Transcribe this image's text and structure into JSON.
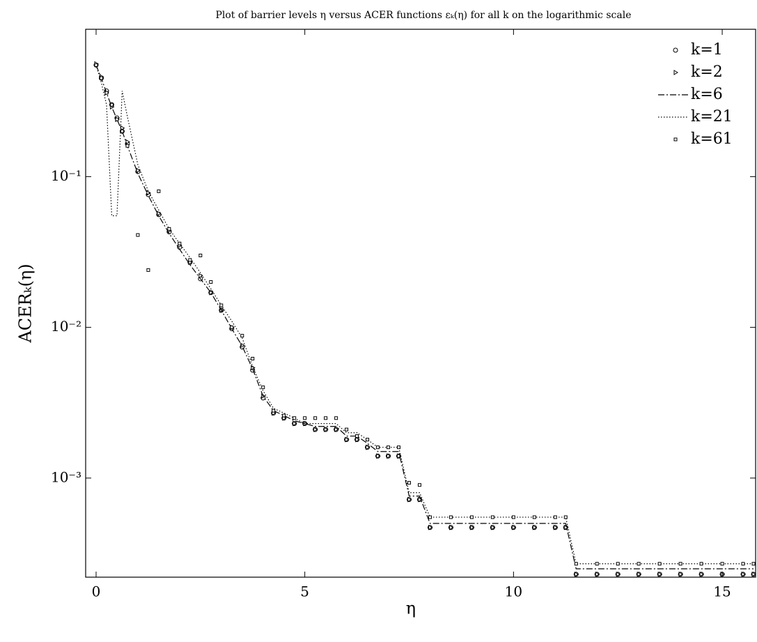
{
  "chart_data": {
    "type": "line",
    "title": "Plot of barrier levels η versus ACER functions εₖ(η) for all k on the logarithmic scale",
    "xlabel": "η",
    "ylabel": "ACERₖ(η)",
    "log_y": true,
    "legend": "top-right",
    "xlim": [
      -0.25,
      15.8
    ],
    "ylim": [
      0.00022,
      0.95
    ],
    "xticks": [
      0,
      5,
      10,
      15
    ],
    "yticks": [
      {
        "value": 0.1,
        "label": "10⁻¹"
      },
      {
        "value": 0.01,
        "label": "10⁻²"
      },
      {
        "value": 0.001,
        "label": "10⁻³"
      }
    ],
    "x": [
      0,
      0.125,
      0.25,
      0.375,
      0.5,
      0.625,
      0.75,
      1,
      1.25,
      1.5,
      1.75,
      2,
      2.25,
      2.5,
      2.75,
      3,
      3.25,
      3.5,
      3.75,
      4,
      4.25,
      4.5,
      4.75,
      5,
      5.25,
      5.5,
      5.75,
      6,
      6.25,
      6.5,
      6.75,
      7,
      7.25,
      7.5,
      7.75,
      8,
      8.5,
      9,
      9.5,
      10,
      10.5,
      11,
      11.25,
      11.5,
      12,
      12.5,
      13,
      13.5,
      14,
      14.5,
      15,
      15.5,
      15.75
    ],
    "series": [
      {
        "name": "k=1",
        "color": "#000000",
        "marker": "circle",
        "dash": null,
        "values": [
          0.55,
          0.45,
          0.37,
          0.3,
          0.245,
          0.2,
          0.165,
          0.108,
          0.076,
          0.056,
          0.043,
          0.034,
          0.027,
          0.021,
          0.017,
          0.013,
          0.0098,
          0.0074,
          0.0052,
          0.0034,
          0.0027,
          0.0025,
          0.0023,
          0.0023,
          0.0021,
          0.0021,
          0.0021,
          0.0018,
          0.0018,
          0.0016,
          0.0014,
          0.0014,
          0.0014,
          0.00072,
          0.00072,
          0.00047,
          0.00047,
          0.00047,
          0.00047,
          0.00047,
          0.00047,
          0.00047,
          0.00047,
          0.00023,
          0.00023,
          0.00023,
          0.00023,
          0.00023,
          0.00023,
          0.00023,
          0.00023,
          0.00023,
          0.00023
        ]
      },
      {
        "name": "k=2",
        "color": "#000000",
        "marker": "triangle",
        "dash": null,
        "values": [
          0.56,
          0.46,
          0.36,
          0.29,
          0.24,
          0.21,
          0.17,
          0.11,
          0.078,
          0.057,
          0.044,
          0.035,
          0.027,
          0.022,
          0.017,
          0.013,
          0.01,
          0.0076,
          0.0054,
          0.0035,
          0.0027,
          0.0025,
          0.0023,
          0.0023,
          0.0021,
          0.0021,
          0.0021,
          0.0018,
          0.0018,
          0.0016,
          0.0014,
          0.0014,
          0.0014,
          0.00072,
          0.00072,
          0.00047,
          0.00047,
          0.00047,
          0.00047,
          0.00047,
          0.00047,
          0.00047,
          0.00047,
          0.00023,
          0.00023,
          0.00023,
          0.00023,
          0.00023,
          0.00023,
          0.00023,
          0.00023,
          0.00023,
          0.00023
        ]
      },
      {
        "name": "k=6",
        "color": "#000000",
        "marker": null,
        "dash": "dashdot",
        "values": [
          0.55,
          0.45,
          0.36,
          0.29,
          0.24,
          0.2,
          0.16,
          0.105,
          0.075,
          0.055,
          0.042,
          0.033,
          0.026,
          0.021,
          0.017,
          0.013,
          0.0098,
          0.0075,
          0.0053,
          0.0035,
          0.0028,
          0.0026,
          0.0024,
          0.0023,
          0.0022,
          0.0022,
          0.0022,
          0.0019,
          0.0019,
          0.0017,
          0.0015,
          0.0015,
          0.0015,
          0.00076,
          0.00076,
          0.0005,
          0.0005,
          0.0005,
          0.0005,
          0.0005,
          0.0005,
          0.0005,
          0.0005,
          0.00025,
          0.00025,
          0.00025,
          0.00025,
          0.00025,
          0.00025,
          0.00025,
          0.00025,
          0.00025,
          0.00025
        ]
      },
      {
        "name": "k=21",
        "color": "#000000",
        "marker": null,
        "dash": "dotted",
        "values": [
          0.55,
          0.42,
          0.3,
          0.055,
          0.055,
          0.37,
          0.25,
          0.12,
          0.08,
          0.06,
          0.045,
          0.036,
          0.029,
          0.023,
          0.018,
          0.014,
          0.011,
          0.0085,
          0.0055,
          0.0038,
          0.0029,
          0.0027,
          0.0025,
          0.0023,
          0.0023,
          0.0023,
          0.0023,
          0.002,
          0.002,
          0.0018,
          0.0016,
          0.0016,
          0.0016,
          0.0008,
          0.0008,
          0.00055,
          0.00055,
          0.00055,
          0.00055,
          0.00055,
          0.00055,
          0.00055,
          0.00055,
          0.00027,
          0.00027,
          0.00027,
          0.00027,
          0.00027,
          0.00027,
          0.00027,
          0.00027,
          0.00027,
          0.00027
        ]
      },
      {
        "name": "k=61",
        "color": "#000000",
        "marker": "square",
        "dash": null,
        "values": [
          0.55,
          0.45,
          0.36,
          0.3,
          0.24,
          0.2,
          0.16,
          0.041,
          0.024,
          0.08,
          0.045,
          0.036,
          0.028,
          0.03,
          0.02,
          0.014,
          0.01,
          0.0088,
          0.0062,
          0.004,
          0.0028,
          0.0026,
          0.0025,
          0.0025,
          0.0025,
          0.0025,
          0.0025,
          0.0021,
          0.0019,
          0.0018,
          0.0016,
          0.0016,
          0.0016,
          0.00093,
          0.0009,
          0.00055,
          0.00055,
          0.00055,
          0.00055,
          0.00055,
          0.00055,
          0.00055,
          0.00055,
          0.00027,
          0.00027,
          0.00027,
          0.00027,
          0.00027,
          0.00027,
          0.00027,
          0.00027,
          0.00027,
          0.00027
        ]
      }
    ]
  }
}
